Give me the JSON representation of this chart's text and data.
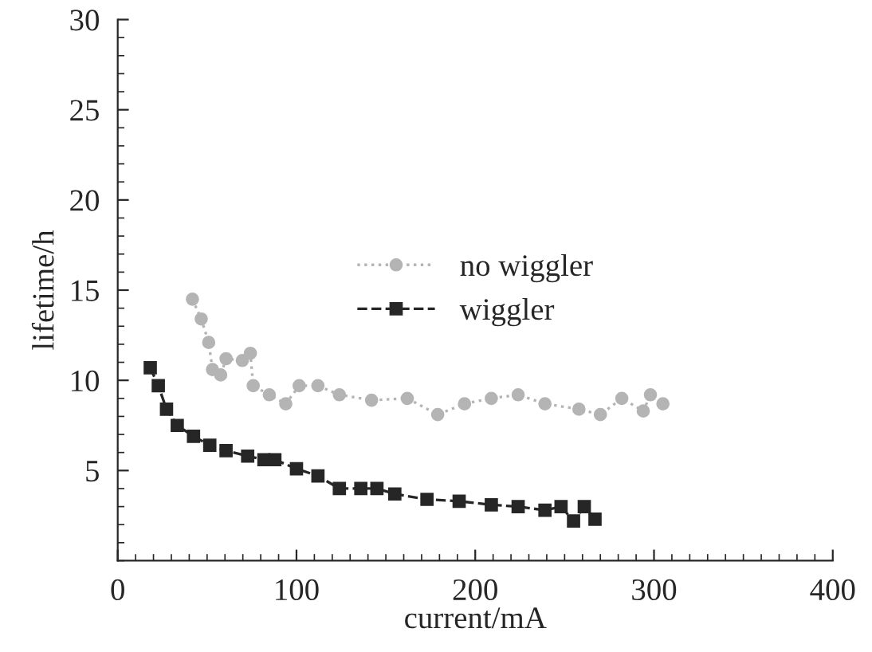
{
  "chart_data": {
    "type": "line",
    "xlabel": "current/mA",
    "ylabel": "lifetime/h",
    "xlim": [
      0,
      400
    ],
    "xticks": [
      0,
      100,
      200,
      300,
      400
    ],
    "ylim": [
      0,
      30
    ],
    "yticks": [
      5,
      10,
      15,
      20,
      25,
      30
    ],
    "grid": false,
    "legend": "center",
    "series": [
      {
        "name": "no wiggler",
        "color": "#b4b4b4",
        "marker": "circle",
        "line_style": "dotted",
        "x": [
          41.8,
          46.7,
          50.9,
          53,
          57.6,
          60.6,
          69.7,
          74.2,
          75.8,
          84.8,
          94,
          101.5,
          112,
          124,
          142,
          162,
          179,
          194,
          209,
          224,
          239,
          258,
          270,
          282,
          294,
          298,
          305
        ],
        "values": [
          14.5,
          13.4,
          12.1,
          10.6,
          10.3,
          11.2,
          11.1,
          11.5,
          9.7,
          9.2,
          8.7,
          9.7,
          9.7,
          9.2,
          8.9,
          9.0,
          8.1,
          8.7,
          9.0,
          9.2,
          8.7,
          8.4,
          8.1,
          9.0,
          8.3,
          9.2,
          8.7
        ]
      },
      {
        "name": "wiggler",
        "color": "#262626",
        "marker": "square",
        "line_style": "dashed",
        "x": [
          18.2,
          22.7,
          27.3,
          33.3,
          42.4,
          51.5,
          60.6,
          72.7,
          81.8,
          87.9,
          100,
          112,
          124,
          136,
          145,
          155,
          173,
          191,
          209,
          224,
          239,
          248,
          255,
          261,
          267
        ],
        "values": [
          10.7,
          9.7,
          8.4,
          7.5,
          6.9,
          6.4,
          6.1,
          5.8,
          5.6,
          5.6,
          5.1,
          4.7,
          4.0,
          4.0,
          4.0,
          3.7,
          3.4,
          3.3,
          3.1,
          3.0,
          2.8,
          3.0,
          2.2,
          3.0,
          2.3
        ]
      }
    ]
  }
}
